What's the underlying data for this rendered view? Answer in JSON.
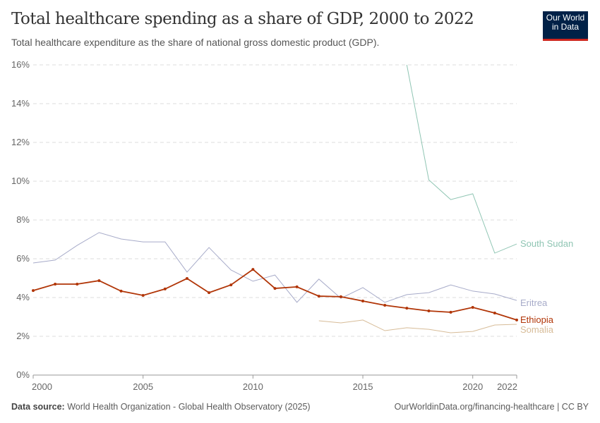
{
  "header": {
    "title": "Total healthcare spending as a share of GDP, 2000 to 2022",
    "subtitle": "Total healthcare expenditure as the share of national gross domestic product (GDP).",
    "logo": "Our World in Data"
  },
  "footer": {
    "source_label": "Data source:",
    "source": "World Health Organization - Global Health Observatory (2025)",
    "url": "OurWorldinData.org/financing-healthcare | CC BY"
  },
  "chart_data": {
    "type": "line",
    "title": "Total healthcare spending as a share of GDP, 2000 to 2022",
    "xlim": [
      2000,
      2022
    ],
    "ylim": [
      0,
      16
    ],
    "x_ticks": [
      "2000",
      "2005",
      "2010",
      "2015",
      "2020",
      "2022"
    ],
    "y_ticks": [
      "0%",
      "2%",
      "4%",
      "6%",
      "8%",
      "10%",
      "12%",
      "14%",
      "16%"
    ],
    "grid": "horizontal dashed",
    "series": [
      {
        "name": "South Sudan",
        "color": "#8fc5b3",
        "markers": false,
        "x": [
          2017,
          2018,
          2019,
          2020,
          2021,
          2022
        ],
        "values": [
          16.0,
          10.07,
          9.05,
          9.35,
          6.29,
          6.76
        ]
      },
      {
        "name": "Eritrea",
        "color": "#a7abc9",
        "markers": false,
        "x": [
          2000,
          2001,
          2002,
          2003,
          2004,
          2005,
          2006,
          2007,
          2008,
          2009,
          2010,
          2011,
          2012,
          2013,
          2014,
          2015,
          2016,
          2017,
          2018,
          2019,
          2020,
          2021,
          2022
        ],
        "values": [
          5.78,
          5.93,
          6.69,
          7.35,
          7.02,
          6.87,
          6.87,
          5.31,
          6.58,
          5.42,
          4.84,
          5.16,
          3.75,
          4.95,
          3.96,
          4.51,
          3.75,
          4.15,
          4.25,
          4.65,
          4.33,
          4.18,
          3.85
        ]
      },
      {
        "name": "Ethiopia",
        "color": "#b13507",
        "markers": true,
        "x": [
          2000,
          2001,
          2002,
          2003,
          2004,
          2005,
          2006,
          2007,
          2008,
          2009,
          2010,
          2011,
          2012,
          2013,
          2014,
          2015,
          2016,
          2017,
          2018,
          2019,
          2020,
          2021,
          2022
        ],
        "values": [
          4.36,
          4.69,
          4.69,
          4.87,
          4.33,
          4.11,
          4.44,
          4.98,
          4.25,
          4.65,
          5.45,
          4.47,
          4.55,
          4.07,
          4.04,
          3.82,
          3.6,
          3.45,
          3.31,
          3.24,
          3.49,
          3.2,
          2.84
        ]
      },
      {
        "name": "Somalia",
        "color": "#d7bc98",
        "markers": false,
        "x": [
          2013,
          2014,
          2015,
          2016,
          2017,
          2018,
          2019,
          2020,
          2021,
          2022
        ],
        "values": [
          2.8,
          2.69,
          2.84,
          2.29,
          2.44,
          2.36,
          2.18,
          2.25,
          2.58,
          2.62
        ]
      }
    ],
    "legend_placement": "right (line-end labels)"
  }
}
